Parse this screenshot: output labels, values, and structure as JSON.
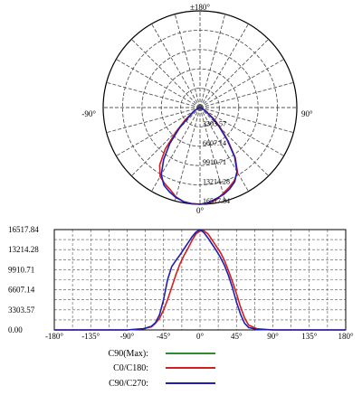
{
  "colors": {
    "c90_max": "#2e8b2e",
    "c0_c180": "#d41f1f",
    "c90_c270": "#1f1fb0",
    "grid": "#555555",
    "axis": "#000000"
  },
  "chart_data": [
    {
      "type": "polar",
      "angle_labels": {
        "top": "±180°",
        "left": "-90°",
        "right": "90°",
        "bottom": "0°"
      },
      "radial_ticks": [
        "3303.57",
        "6607.14",
        "9910.71",
        "13214.28",
        "16517.84"
      ],
      "rmax": 16517.84,
      "grid": true,
      "series": [
        {
          "name": "C0/C180",
          "color": "#d41f1f",
          "angles": [
            -90,
            -80,
            -70,
            -60,
            -50,
            -45,
            -40,
            -35,
            -30,
            -25,
            -20,
            -15,
            -10,
            -5,
            0,
            5,
            10,
            15,
            20,
            25,
            30,
            35,
            40,
            45,
            50,
            60,
            70,
            80,
            90
          ],
          "values": [
            0,
            120,
            400,
            1200,
            3300,
            5600,
            9200,
            12000,
            13600,
            14300,
            14900,
            15800,
            16300,
            16450,
            16500,
            16400,
            16000,
            15200,
            14500,
            13800,
            12800,
            10500,
            7500,
            5000,
            3300,
            1100,
            350,
            100,
            0
          ]
        },
        {
          "name": "C90/C270",
          "color": "#1f1fb0",
          "angles": [
            -90,
            -80,
            -70,
            -60,
            -50,
            -45,
            -40,
            -35,
            -30,
            -25,
            -20,
            -15,
            -10,
            -5,
            0,
            5,
            10,
            15,
            20,
            25,
            30,
            35,
            40,
            45,
            50,
            60,
            70,
            80,
            90
          ],
          "values": [
            0,
            100,
            350,
            1000,
            2600,
            5000,
            8000,
            10800,
            13200,
            14600,
            15300,
            15900,
            16300,
            16500,
            16517.84,
            16300,
            15800,
            15400,
            14800,
            14000,
            12600,
            10300,
            7200,
            4600,
            2800,
            900,
            300,
            80,
            0
          ]
        }
      ]
    },
    {
      "type": "line",
      "x_ticks": [
        "-180°",
        "-135°",
        "-90°",
        "-45°",
        "0°",
        "45°",
        "90°",
        "135°",
        "180°"
      ],
      "y_ticks": [
        "0.00",
        "3303.57",
        "6607.14",
        "9910.71",
        "13214.28",
        "16517.84"
      ],
      "xlim": [
        -180,
        180
      ],
      "ylim": [
        0,
        16517.84
      ],
      "grid": true,
      "series": [
        {
          "name": "C0/C180",
          "color": "#d41f1f",
          "x": [
            -180,
            -90,
            -70,
            -60,
            -55,
            -50,
            -45,
            -40,
            -35,
            -30,
            -25,
            -20,
            -15,
            -10,
            -5,
            0,
            5,
            10,
            15,
            20,
            25,
            30,
            35,
            40,
            45,
            50,
            55,
            60,
            70,
            90,
            180
          ],
          "y": [
            0,
            0,
            200,
            500,
            1100,
            1900,
            3300,
            5000,
            7000,
            9000,
            10800,
            12200,
            13400,
            14700,
            15800,
            16300,
            16300,
            15800,
            14800,
            13800,
            12800,
            11500,
            9800,
            8000,
            6000,
            3800,
            2000,
            800,
            200,
            0,
            0
          ]
        },
        {
          "name": "C90/C270",
          "color": "#1f1fb0",
          "x": [
            -180,
            -90,
            -70,
            -60,
            -55,
            -50,
            -45,
            -40,
            -35,
            -30,
            -25,
            -20,
            -15,
            -10,
            -5,
            0,
            5,
            10,
            15,
            20,
            25,
            30,
            35,
            40,
            45,
            50,
            55,
            60,
            70,
            90,
            180
          ],
          "y": [
            0,
            0,
            200,
            600,
            1200,
            2500,
            5000,
            8300,
            10400,
            11400,
            12300,
            13300,
            14300,
            15300,
            16100,
            16517.84,
            16000,
            15100,
            14100,
            13100,
            12000,
            10700,
            9000,
            7000,
            4600,
            2600,
            1100,
            400,
            100,
            0,
            0
          ]
        }
      ]
    }
  ],
  "legend": [
    {
      "label": "C90(Max):",
      "color": "#2e8b2e"
    },
    {
      "label": "C0/C180:",
      "color": "#d41f1f"
    },
    {
      "label": "C90/C270:",
      "color": "#1f1fb0"
    }
  ]
}
